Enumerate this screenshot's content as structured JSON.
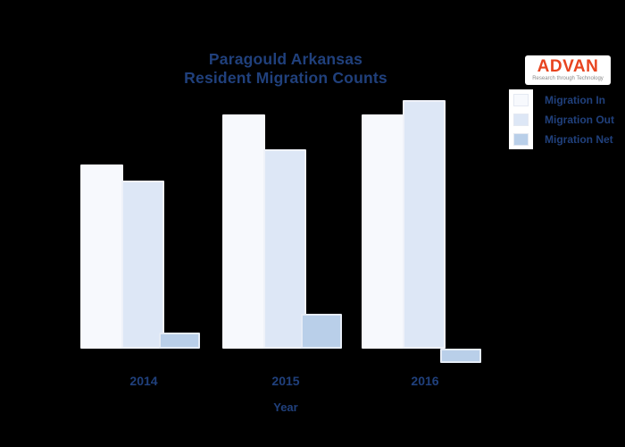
{
  "title": {
    "line1": "Paragould Arkansas",
    "line2": "Resident Migration Counts"
  },
  "logo": {
    "name": "ADVAN",
    "tagline": "Research through Technology",
    "name_color": "#e8441f",
    "background": "#ffffff"
  },
  "legend": {
    "items": [
      {
        "label": "Migration In",
        "color": "#f7f9fd"
      },
      {
        "label": "Migration Out",
        "color": "#dde7f6"
      },
      {
        "label": "Migration Net",
        "color": "#b9cfe9"
      }
    ]
  },
  "x_axis": {
    "title": "Year",
    "ticks": [
      "2014",
      "2015",
      "2016"
    ]
  },
  "colors": {
    "background": "#000000",
    "text": "#20407c",
    "bar_in": "#f7f9fd",
    "bar_out": "#dde7f6",
    "bar_net": "#b9cfe9"
  },
  "chart_data": {
    "type": "bar",
    "title": "Paragould Arkansas Resident Migration Counts",
    "xlabel": "Year",
    "ylabel": "",
    "categories": [
      "2014",
      "2015",
      "2016"
    ],
    "series": [
      {
        "name": "Migration In",
        "values": [
          1030,
          1310,
          1310
        ],
        "color": "#f7f9fd"
      },
      {
        "name": "Migration Out",
        "values": [
          940,
          1115,
          1390
        ],
        "color": "#dde7f6"
      },
      {
        "name": "Migration Net",
        "values": [
          90,
          195,
          -80
        ],
        "color": "#b9cfe9"
      }
    ],
    "baseline": 0,
    "ylim": [
      -150,
      1500
    ],
    "grid": false,
    "legend_position": "right"
  }
}
